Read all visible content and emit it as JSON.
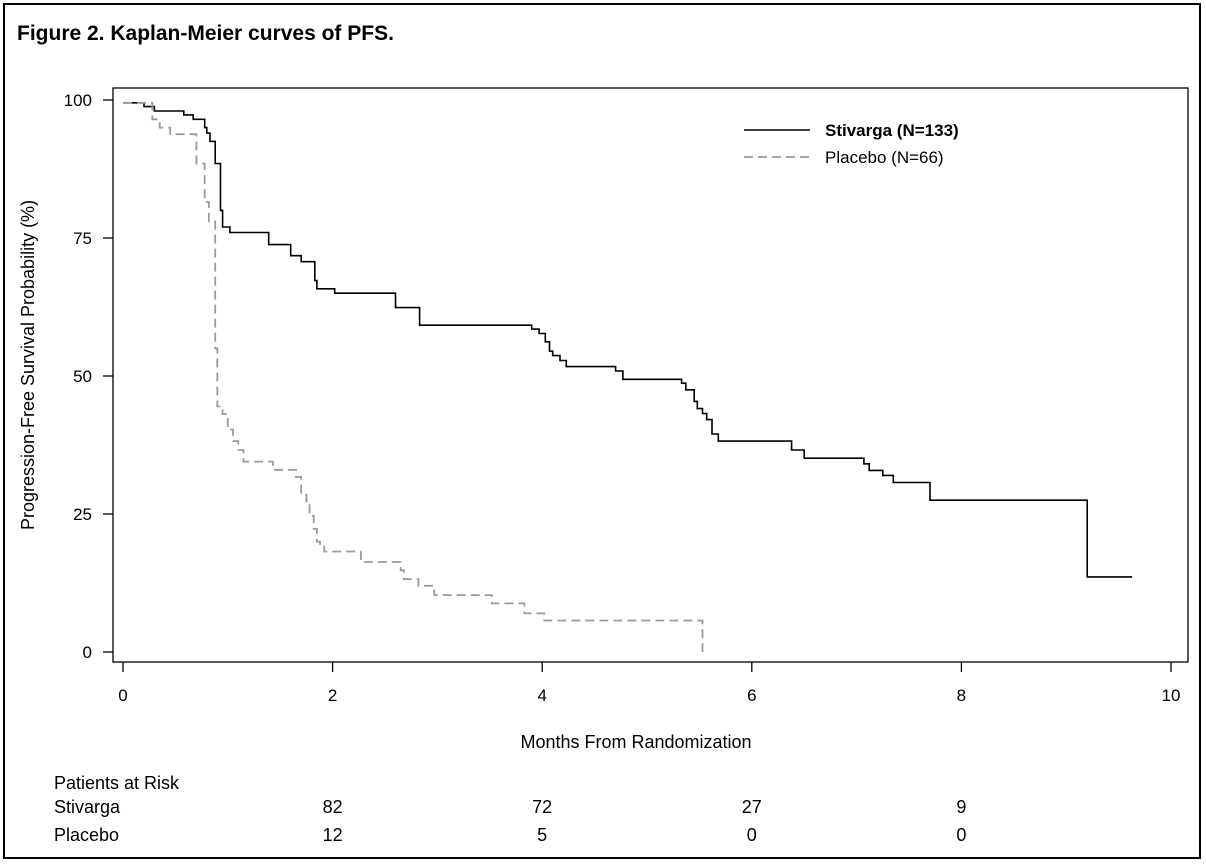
{
  "figure_title": "Figure 2. Kaplan-Meier curves of PFS.",
  "colors": {
    "stivarga": "#000000",
    "placebo": "#9a9a9a",
    "axis": "#000000"
  },
  "chart_data": {
    "type": "line",
    "subtype": "kaplan-meier step",
    "title": "",
    "xlabel": "Months From Randomization",
    "ylabel": "Progression-Free Survival Probability (%)",
    "xlim": [
      0,
      10
    ],
    "ylim": [
      0,
      100
    ],
    "xticks": [
      0,
      2,
      4,
      6,
      8,
      10
    ],
    "yticks": [
      0,
      25,
      50,
      75,
      100
    ],
    "grid": false,
    "legend_position": "top-right",
    "series": [
      {
        "name": "Stivarga (N=133)",
        "line_style": "solid",
        "bold_label": true,
        "points": [
          [
            0,
            99.5
          ],
          [
            0.2,
            99.5
          ],
          [
            0.2,
            98.8
          ],
          [
            0.3,
            98.8
          ],
          [
            0.3,
            98
          ],
          [
            0.58,
            98
          ],
          [
            0.58,
            97.3
          ],
          [
            0.67,
            97.3
          ],
          [
            0.67,
            96.5
          ],
          [
            0.78,
            96.5
          ],
          [
            0.78,
            95
          ],
          [
            0.8,
            95
          ],
          [
            0.8,
            94
          ],
          [
            0.83,
            94
          ],
          [
            0.83,
            92.5
          ],
          [
            0.88,
            92.5
          ],
          [
            0.88,
            88.5
          ],
          [
            0.93,
            88.5
          ],
          [
            0.93,
            80
          ],
          [
            0.95,
            80
          ],
          [
            0.95,
            77
          ],
          [
            1.02,
            77
          ],
          [
            1.02,
            76
          ],
          [
            1.39,
            76
          ],
          [
            1.39,
            73.8
          ],
          [
            1.6,
            73.8
          ],
          [
            1.6,
            71.8
          ],
          [
            1.7,
            71.8
          ],
          [
            1.7,
            70.7
          ],
          [
            1.83,
            70.7
          ],
          [
            1.83,
            67.3
          ],
          [
            1.85,
            67.3
          ],
          [
            1.85,
            65.8
          ],
          [
            2.02,
            65.8
          ],
          [
            2.02,
            65
          ],
          [
            2.6,
            65
          ],
          [
            2.6,
            62.4
          ],
          [
            2.83,
            62.4
          ],
          [
            2.83,
            59.2
          ],
          [
            3.9,
            59.2
          ],
          [
            3.9,
            58.5
          ],
          [
            3.97,
            58.5
          ],
          [
            3.97,
            57.7
          ],
          [
            4.03,
            57.7
          ],
          [
            4.03,
            56.2
          ],
          [
            4.07,
            56.2
          ],
          [
            4.07,
            54.5
          ],
          [
            4.1,
            54.5
          ],
          [
            4.1,
            53.7
          ],
          [
            4.17,
            53.7
          ],
          [
            4.17,
            52.8
          ],
          [
            4.23,
            52.8
          ],
          [
            4.23,
            51.7
          ],
          [
            4.7,
            51.7
          ],
          [
            4.7,
            50.9
          ],
          [
            4.77,
            50.9
          ],
          [
            4.77,
            49.4
          ],
          [
            5.33,
            49.4
          ],
          [
            5.33,
            48.7
          ],
          [
            5.37,
            48.7
          ],
          [
            5.37,
            47.5
          ],
          [
            5.45,
            47.5
          ],
          [
            5.45,
            45.4
          ],
          [
            5.48,
            45.4
          ],
          [
            5.48,
            44.1
          ],
          [
            5.53,
            44.1
          ],
          [
            5.53,
            43.2
          ],
          [
            5.57,
            43.2
          ],
          [
            5.57,
            42.1
          ],
          [
            5.62,
            42.1
          ],
          [
            5.62,
            39.5
          ],
          [
            5.68,
            39.5
          ],
          [
            5.68,
            38.2
          ],
          [
            6.38,
            38.2
          ],
          [
            6.38,
            36.6
          ],
          [
            6.5,
            36.6
          ],
          [
            6.5,
            35.1
          ],
          [
            7.07,
            35.1
          ],
          [
            7.07,
            34.1
          ],
          [
            7.12,
            34.1
          ],
          [
            7.12,
            32.9
          ],
          [
            7.25,
            32.9
          ],
          [
            7.25,
            32
          ],
          [
            7.35,
            32
          ],
          [
            7.35,
            30.7
          ],
          [
            7.7,
            30.7
          ],
          [
            7.7,
            27.5
          ],
          [
            9.2,
            27.5
          ],
          [
            9.2,
            13.6
          ],
          [
            9.63,
            13.6
          ]
        ]
      },
      {
        "name": "Placebo (N=66)",
        "line_style": "dashed",
        "bold_label": false,
        "points": [
          [
            0,
            99.5
          ],
          [
            0.28,
            99.5
          ],
          [
            0.28,
            96.5
          ],
          [
            0.35,
            96.5
          ],
          [
            0.35,
            95
          ],
          [
            0.45,
            95
          ],
          [
            0.45,
            93.8
          ],
          [
            0.7,
            93.8
          ],
          [
            0.7,
            88.5
          ],
          [
            0.78,
            88.5
          ],
          [
            0.78,
            81.5
          ],
          [
            0.82,
            81.5
          ],
          [
            0.82,
            78
          ],
          [
            0.88,
            78
          ],
          [
            0.88,
            55
          ],
          [
            0.9,
            55
          ],
          [
            0.9,
            44.5
          ],
          [
            0.95,
            44.5
          ],
          [
            0.95,
            43.1
          ],
          [
            1.0,
            43.1
          ],
          [
            1.0,
            40.3
          ],
          [
            1.05,
            40.3
          ],
          [
            1.05,
            38.2
          ],
          [
            1.1,
            38.2
          ],
          [
            1.1,
            36.6
          ],
          [
            1.15,
            36.6
          ],
          [
            1.15,
            34.5
          ],
          [
            1.43,
            34.5
          ],
          [
            1.43,
            33
          ],
          [
            1.65,
            33
          ],
          [
            1.65,
            31.7
          ],
          [
            1.7,
            31.7
          ],
          [
            1.7,
            28.5
          ],
          [
            1.75,
            28.5
          ],
          [
            1.75,
            27.3
          ],
          [
            1.78,
            27.3
          ],
          [
            1.78,
            24.7
          ],
          [
            1.82,
            24.7
          ],
          [
            1.82,
            22.3
          ],
          [
            1.85,
            22.3
          ],
          [
            1.85,
            20
          ],
          [
            1.88,
            20
          ],
          [
            1.88,
            19.1
          ],
          [
            1.92,
            19.1
          ],
          [
            1.92,
            18.2
          ],
          [
            2.27,
            18.2
          ],
          [
            2.27,
            16.3
          ],
          [
            2.65,
            16.3
          ],
          [
            2.65,
            14.8
          ],
          [
            2.68,
            14.8
          ],
          [
            2.68,
            13.2
          ],
          [
            2.82,
            13.2
          ],
          [
            2.82,
            12
          ],
          [
            2.97,
            12
          ],
          [
            2.97,
            10.3
          ],
          [
            3.52,
            10.3
          ],
          [
            3.52,
            8.8
          ],
          [
            3.83,
            8.8
          ],
          [
            3.83,
            7
          ],
          [
            4.02,
            7
          ],
          [
            4.02,
            5.7
          ],
          [
            5.53,
            5.7
          ],
          [
            5.53,
            0
          ]
        ]
      }
    ],
    "risk_table": {
      "header": "Patients at Risk",
      "times": [
        2,
        4,
        6,
        8
      ],
      "rows": [
        {
          "label": "Stivarga",
          "counts": [
            "82",
            "72",
            "27",
            "9"
          ]
        },
        {
          "label": "Placebo",
          "counts": [
            "12",
            "5",
            "0",
            "0"
          ]
        }
      ]
    }
  }
}
